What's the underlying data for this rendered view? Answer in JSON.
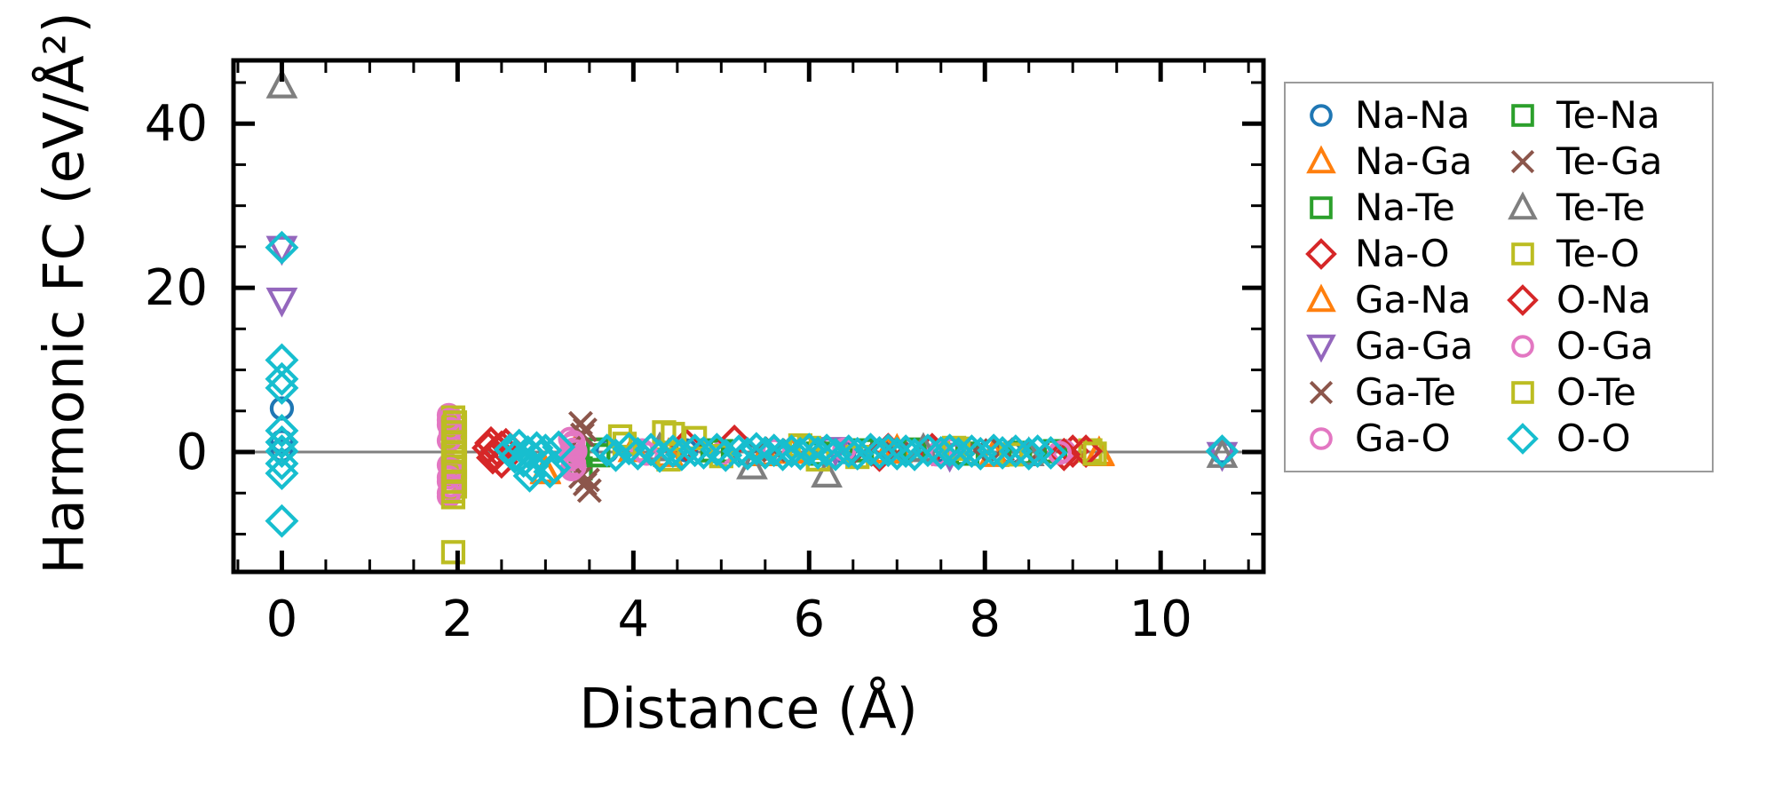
{
  "chart_data": {
    "type": "scatter",
    "title": "",
    "xlabel": "Distance (Å)",
    "ylabel": "Harmonic FC (eV/Å²)",
    "xlim": [
      -0.55,
      11.17
    ],
    "ylim": [
      -14.6,
      47.7
    ],
    "xticks": [
      0,
      2,
      4,
      6,
      8,
      10
    ],
    "yticks": [
      0,
      20,
      40
    ],
    "x_minor_step": 0.5,
    "y_minor_step": 5,
    "grid": false,
    "zero_line": {
      "y": 0,
      "color": "#808080"
    },
    "legend_position": "outside-right",
    "axis_color": "#000000",
    "series": [
      {
        "name": "Na-Na",
        "marker": "circle",
        "color": "#1f77b4",
        "points": [
          [
            0,
            5.3
          ],
          [
            0,
            1.3
          ],
          [
            0,
            0.2
          ],
          [
            3.7,
            0.1
          ],
          [
            4.6,
            0.2
          ],
          [
            5.3,
            -0.3
          ],
          [
            6.4,
            0
          ],
          [
            7.5,
            0.2
          ],
          [
            8.3,
            -0.1
          ],
          [
            10.7,
            0
          ]
        ]
      },
      {
        "name": "Na-Ga",
        "marker": "triangle-up",
        "color": "#ff7f0e",
        "points": [
          [
            3.0,
            -2.3
          ],
          [
            3.35,
            0.4
          ],
          [
            4.4,
            -0.3
          ],
          [
            5.8,
            0.1
          ],
          [
            7.0,
            0.2
          ],
          [
            9.3,
            -0.2
          ]
        ]
      },
      {
        "name": "Na-Te",
        "marker": "square",
        "color": "#2ca02c",
        "points": [
          [
            3.4,
            -2.0
          ],
          [
            3.6,
            0.3
          ],
          [
            5.0,
            0.1
          ],
          [
            6.6,
            0.2
          ],
          [
            7.8,
            -0.2
          ],
          [
            8.8,
            0.1
          ]
        ]
      },
      {
        "name": "Na-O",
        "marker": "diamond",
        "color": "#d62728",
        "points": [
          [
            2.35,
            0.5
          ],
          [
            2.4,
            -0.7
          ],
          [
            2.45,
            0.2
          ],
          [
            2.5,
            -1.2
          ],
          [
            2.55,
            0.9
          ],
          [
            4.6,
            0.9
          ],
          [
            6.8,
            -0.4
          ],
          [
            7.4,
            0.3
          ],
          [
            9.0,
            0.1
          ]
        ]
      },
      {
        "name": "Ga-Na",
        "marker": "triangle-up",
        "color": "#ff7f0e",
        "points": [
          [
            3.0,
            -2.4
          ],
          [
            4.0,
            0.3
          ],
          [
            5.5,
            -0.2
          ],
          [
            6.9,
            0.1
          ],
          [
            8.1,
            -0.3
          ],
          [
            9.3,
            -0.1
          ]
        ]
      },
      {
        "name": "Ga-Ga",
        "marker": "triangle-down",
        "color": "#9467bd",
        "points": [
          [
            0,
            24.8
          ],
          [
            0,
            18.5
          ],
          [
            6.3,
            0.3
          ],
          [
            7.6,
            -0.4
          ],
          [
            10.7,
            -0.3
          ]
        ]
      },
      {
        "name": "Ga-Te",
        "marker": "x",
        "color": "#8c564b",
        "points": [
          [
            3.4,
            3.5
          ],
          [
            3.45,
            2.7
          ],
          [
            3.4,
            -3.0
          ],
          [
            3.45,
            -3.9
          ],
          [
            3.5,
            -4.7
          ],
          [
            5.4,
            0.4
          ],
          [
            6.6,
            -0.3
          ],
          [
            7.9,
            0.2
          ],
          [
            8.6,
            -0.2
          ]
        ]
      },
      {
        "name": "Ga-O",
        "marker": "circle",
        "color": "#e377c2",
        "points": [
          [
            1.9,
            4.5
          ],
          [
            1.9,
            3.3
          ],
          [
            1.92,
            2.2
          ],
          [
            1.9,
            -1.6
          ],
          [
            1.92,
            -2.7
          ],
          [
            1.9,
            -3.6
          ],
          [
            1.92,
            -4.5
          ],
          [
            1.9,
            -5.4
          ],
          [
            3.28,
            1.6
          ],
          [
            3.3,
            0.9
          ],
          [
            3.32,
            0.3
          ],
          [
            3.29,
            -0.3
          ],
          [
            3.31,
            -0.9
          ],
          [
            3.33,
            -1.5
          ],
          [
            3.3,
            -2.1
          ],
          [
            4.1,
            0.2
          ],
          [
            5.0,
            -0.2
          ],
          [
            6.4,
            0.3
          ],
          [
            7.45,
            -0.3
          ],
          [
            8.9,
            0.1
          ]
        ]
      },
      {
        "name": "Te-Na",
        "marker": "square",
        "color": "#2ca02c",
        "points": [
          [
            3.6,
            -0.4
          ],
          [
            4.9,
            0.2
          ],
          [
            6.1,
            -0.2
          ],
          [
            7.2,
            0.3
          ],
          [
            8.4,
            -0.1
          ]
        ]
      },
      {
        "name": "Te-Ga",
        "marker": "x",
        "color": "#8c564b",
        "points": [
          [
            3.42,
            2.1
          ],
          [
            3.48,
            -3.4
          ],
          [
            5.6,
            0.2
          ],
          [
            7.0,
            -0.2
          ],
          [
            8.2,
            0.3
          ]
        ]
      },
      {
        "name": "Te-Te",
        "marker": "triangle-up",
        "color": "#7f7f7f",
        "points": [
          [
            0,
            44.6
          ],
          [
            4.3,
            0.4
          ],
          [
            5.35,
            -1.8
          ],
          [
            6.2,
            -2.8
          ],
          [
            7.3,
            0.3
          ],
          [
            8.5,
            -0.2
          ],
          [
            10.7,
            -0.4
          ]
        ]
      },
      {
        "name": "Te-O",
        "marker": "square",
        "color": "#bcbd22",
        "points": [
          [
            1.95,
            4.2
          ],
          [
            1.97,
            3.0
          ],
          [
            1.95,
            1.8
          ],
          [
            1.97,
            0.6
          ],
          [
            1.95,
            -0.6
          ],
          [
            1.97,
            -1.8
          ],
          [
            1.95,
            -3.0
          ],
          [
            1.97,
            -4.2
          ],
          [
            1.95,
            -5.5
          ],
          [
            1.95,
            -12.2
          ],
          [
            3.85,
            1.9
          ],
          [
            4.35,
            2.4
          ],
          [
            4.7,
            1.7
          ],
          [
            4.4,
            -0.9
          ],
          [
            5.9,
            0.8
          ],
          [
            6.1,
            -0.9
          ],
          [
            7.7,
            0.4
          ],
          [
            9.2,
            0.2
          ]
        ]
      },
      {
        "name": "O-Na",
        "marker": "diamond",
        "color": "#d62728",
        "points": [
          [
            2.38,
            1.1
          ],
          [
            2.42,
            -0.3
          ],
          [
            2.5,
            0.6
          ],
          [
            5.15,
            1.3
          ],
          [
            6.9,
            0.3
          ],
          [
            8.9,
            -0.3
          ],
          [
            9.15,
            0.1
          ]
        ]
      },
      {
        "name": "O-Ga",
        "marker": "circle",
        "color": "#e377c2",
        "points": [
          [
            1.9,
            3.9
          ],
          [
            1.92,
            2.8
          ],
          [
            1.9,
            1.4
          ],
          [
            1.92,
            -2.1
          ],
          [
            1.9,
            -3.1
          ],
          [
            1.92,
            -4.1
          ],
          [
            1.9,
            -5.0
          ],
          [
            3.32,
            1.2
          ],
          [
            3.34,
            0.1
          ],
          [
            3.3,
            -0.7
          ],
          [
            3.33,
            -1.8
          ],
          [
            4.15,
            -0.2
          ],
          [
            5.6,
            0.2
          ],
          [
            7.5,
            -0.2
          ],
          [
            7.6,
            0.3
          ],
          [
            8.85,
            -0.1
          ]
        ]
      },
      {
        "name": "O-Te",
        "marker": "square",
        "color": "#bcbd22",
        "points": [
          [
            1.97,
            3.6
          ],
          [
            1.95,
            2.4
          ],
          [
            1.97,
            1.2
          ],
          [
            1.95,
            0
          ],
          [
            1.97,
            -1.2
          ],
          [
            1.95,
            -2.4
          ],
          [
            1.97,
            -3.6
          ],
          [
            1.95,
            -4.8
          ],
          [
            3.9,
            1.0
          ],
          [
            4.45,
            2.2
          ],
          [
            5.0,
            -0.5
          ],
          [
            6.0,
            0.5
          ],
          [
            6.55,
            -0.6
          ],
          [
            7.65,
            0.5
          ],
          [
            8.3,
            -0.3
          ],
          [
            9.25,
            -0.2
          ]
        ]
      },
      {
        "name": "O-O",
        "marker": "diamond",
        "color": "#17becf",
        "points": [
          [
            0,
            24.9
          ],
          [
            0,
            11.2
          ],
          [
            0,
            8.9
          ],
          [
            0,
            7.8
          ],
          [
            0,
            2.6
          ],
          [
            0,
            1.2
          ],
          [
            0,
            0.1
          ],
          [
            0,
            -1.4
          ],
          [
            0,
            -2.6
          ],
          [
            0,
            -8.4
          ],
          [
            2.6,
            0.3
          ],
          [
            2.65,
            -0.6
          ],
          [
            2.7,
            0.8
          ],
          [
            2.75,
            -1.1
          ],
          [
            2.8,
            0
          ],
          [
            2.82,
            -2.9
          ],
          [
            2.85,
            -1.7
          ],
          [
            2.9,
            0.5
          ],
          [
            2.95,
            -0.4
          ],
          [
            3.0,
            0.2
          ],
          [
            3.05,
            -2.4
          ],
          [
            3.1,
            -1.9
          ],
          [
            3.15,
            0.6
          ],
          [
            3.7,
            0.2
          ],
          [
            3.8,
            -0.4
          ],
          [
            3.95,
            0.4
          ],
          [
            4.05,
            -0.2
          ],
          [
            4.2,
            0.3
          ],
          [
            4.3,
            -0.5
          ],
          [
            4.45,
            0.1
          ],
          [
            4.55,
            -0.3
          ],
          [
            4.7,
            0.2
          ],
          [
            4.8,
            -0.1
          ],
          [
            4.95,
            0.3
          ],
          [
            5.05,
            -0.4
          ],
          [
            5.2,
            0.1
          ],
          [
            5.3,
            -0.2
          ],
          [
            5.4,
            0.4
          ],
          [
            5.5,
            -0.1
          ],
          [
            5.6,
            0.2
          ],
          [
            5.7,
            -0.3
          ],
          [
            5.8,
            0.1
          ],
          [
            5.9,
            -0.2
          ],
          [
            6.0,
            0.3
          ],
          [
            6.1,
            -0.1
          ],
          [
            6.2,
            0.2
          ],
          [
            6.3,
            -0.3
          ],
          [
            6.45,
            0.1
          ],
          [
            6.55,
            -0.2
          ],
          [
            6.7,
            0.3
          ],
          [
            6.8,
            -0.1
          ],
          [
            6.9,
            0.2
          ],
          [
            7.0,
            -0.2
          ],
          [
            7.1,
            0.1
          ],
          [
            7.2,
            -0.3
          ],
          [
            7.35,
            0.2
          ],
          [
            7.5,
            -0.1
          ],
          [
            7.6,
            0.2
          ],
          [
            7.7,
            -0.2
          ],
          [
            7.85,
            0.1
          ],
          [
            7.95,
            -0.2
          ],
          [
            8.1,
            0.2
          ],
          [
            8.2,
            -0.1
          ],
          [
            8.35,
            0.1
          ],
          [
            8.5,
            -0.2
          ],
          [
            8.6,
            0.1
          ],
          [
            8.75,
            -0.1
          ],
          [
            10.7,
            0.1
          ]
        ]
      }
    ]
  }
}
